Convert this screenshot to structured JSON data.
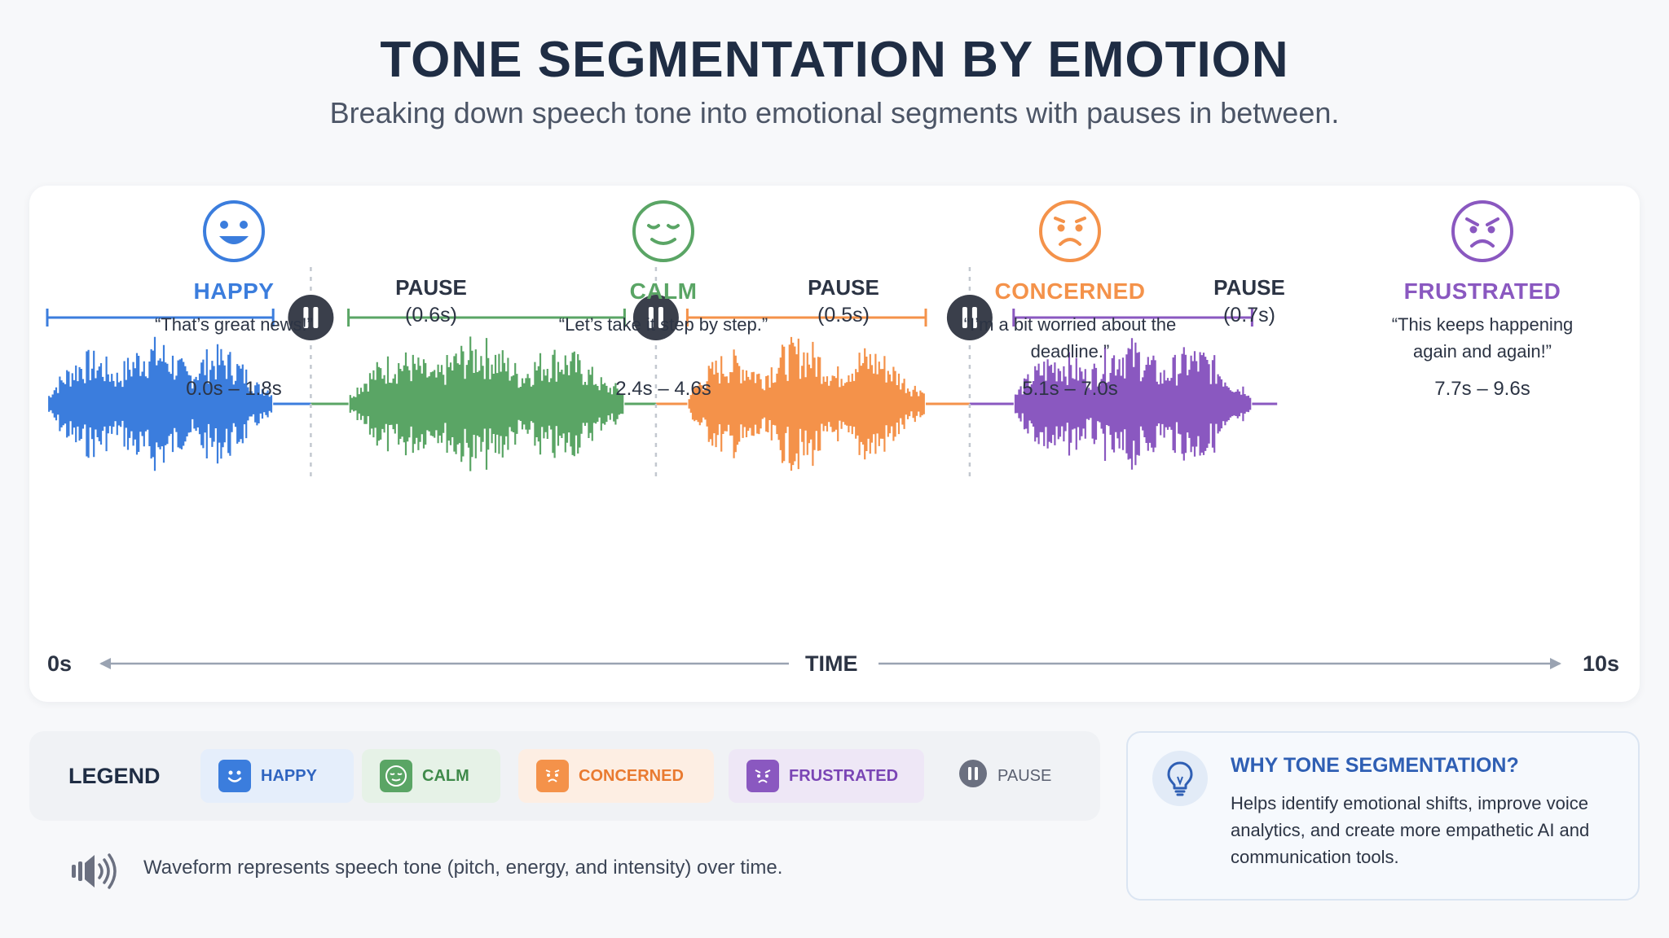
{
  "header": {
    "title": "TONE SEGMENTATION BY EMOTION",
    "subtitle": "Breaking down speech tone into emotional segments with pauses in between."
  },
  "colors": {
    "happy": "#3b7ddd",
    "calm": "#5aa565",
    "concerned": "#f4924a",
    "frustrated": "#8a58c0",
    "pause": "#3a3f4b",
    "axis": "#9aa3b2"
  },
  "segments": [
    {
      "key": "happy",
      "name": "HAPPY",
      "quote": "“That’s great news!”",
      "range": "0.0s – 1.8s",
      "start": 0.0,
      "end": 1.8,
      "icon": "happy-face-icon"
    },
    {
      "key": "calm",
      "name": "CALM",
      "quote": "“Let’s take it step by step.”",
      "range": "2.4s – 4.6s",
      "start": 2.4,
      "end": 4.6,
      "icon": "calm-face-icon"
    },
    {
      "key": "concerned",
      "name": "CONCERNED",
      "quote": "“I’m a bit worried about the deadline.”",
      "range": "5.1s – 7.0s",
      "start": 5.1,
      "end": 7.0,
      "icon": "worried-face-icon"
    },
    {
      "key": "frustrated",
      "name": "FRUSTRATED",
      "quote": "“This keeps happening again and again!”",
      "range": "7.7s – 9.6s",
      "start": 7.7,
      "end": 9.6,
      "icon": "angry-face-icon"
    }
  ],
  "pauses": [
    {
      "label": "PAUSE",
      "duration": "(0.6s)",
      "at": 2.1,
      "icon": "pause-icon"
    },
    {
      "label": "PAUSE",
      "duration": "(0.5s)",
      "at": 4.85,
      "icon": "pause-icon"
    },
    {
      "label": "PAUSE",
      "duration": "(0.7s)",
      "at": 7.35,
      "icon": "pause-icon"
    }
  ],
  "axis": {
    "start_label": "0s",
    "end_label": "10s",
    "title": "TIME",
    "min": 0,
    "max": 10
  },
  "legend": {
    "title": "LEGEND",
    "items": [
      {
        "label": "HAPPY",
        "icon": "happy-face-icon",
        "color": "#3b7ddd",
        "bg": "#e5eefb"
      },
      {
        "label": "CALM",
        "icon": "calm-face-icon",
        "color": "#5aa565",
        "bg": "#e6f2e7"
      },
      {
        "label": "CONCERNED",
        "icon": "worried-face-icon",
        "color": "#f4924a",
        "bg": "#fdeee3"
      },
      {
        "label": "FRUSTRATED",
        "icon": "angry-face-icon",
        "color": "#8a58c0",
        "bg": "#eee7f6"
      },
      {
        "label": "PAUSE",
        "icon": "pause-icon",
        "color": "#5a6070",
        "bg": "#eeeff2"
      }
    ]
  },
  "note": "Waveform represents speech tone (pitch, energy, and intensity) over time.",
  "why": {
    "title": "WHY TONE SEGMENTATION?",
    "body": "Helps identify emotional shifts, improve voice analytics, and create more empathetic AI and communication tools."
  }
}
